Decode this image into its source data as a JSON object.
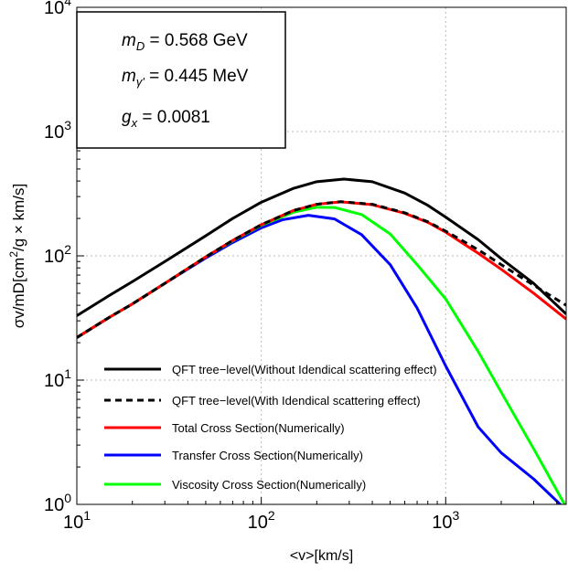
{
  "chart_data": {
    "type": "line",
    "xlabel": "<v>[km/s]",
    "ylabel_parts": {
      "main": "σv/mD[cm",
      "exp": "2",
      "rest": "/g × km/s]"
    },
    "x_scale": "log",
    "y_scale": "log",
    "xlim": [
      10,
      4500
    ],
    "ylim": [
      1,
      10000
    ],
    "grid": true,
    "x_ticks": [
      {
        "value": 10,
        "base": "10",
        "exp": "1"
      },
      {
        "value": 100,
        "base": "10",
        "exp": "2"
      },
      {
        "value": 1000,
        "base": "10",
        "exp": "3"
      }
    ],
    "y_ticks": [
      {
        "value": 1,
        "base": "10",
        "exp": "0"
      },
      {
        "value": 10,
        "base": "10",
        "exp": "1"
      },
      {
        "value": 100,
        "base": "10",
        "exp": "2"
      },
      {
        "value": 1000,
        "base": "10",
        "exp": "3"
      },
      {
        "value": 10000,
        "base": "10",
        "exp": "4"
      }
    ],
    "params_box": [
      {
        "sym": "m",
        "sub": "D",
        "val": " = 0.568 GeV"
      },
      {
        "sym": "m",
        "sub": "γ'",
        "val": " = 0.445 MeV"
      },
      {
        "sym": "g",
        "sub": "x",
        "val": " = 0.0081"
      }
    ],
    "legend_position": "bottom-left",
    "series": [
      {
        "name": "QFT tree−level(Without Idendical scattering effect)",
        "color": "#000000",
        "dash": "solid",
        "x": [
          10,
          15,
          20,
          30,
          50,
          70,
          100,
          150,
          200,
          280,
          400,
          600,
          800,
          1000,
          1500,
          2000,
          3000,
          4500
        ],
        "y": [
          33,
          48,
          62,
          90,
          145,
          200,
          270,
          350,
          395,
          415,
          395,
          320,
          255,
          205,
          135,
          95,
          60,
          34
        ]
      },
      {
        "name": "QFT tree−level(With Idendical scattering effect)",
        "color": "#000000",
        "dash": "dashed",
        "x": [
          10,
          15,
          20,
          30,
          50,
          70,
          100,
          150,
          200,
          270,
          400,
          600,
          800,
          1000,
          1500,
          2000,
          3000,
          4500
        ],
        "y": [
          22,
          32,
          41,
          60,
          98,
          133,
          178,
          232,
          260,
          273,
          260,
          222,
          188,
          158,
          112,
          85,
          58,
          40
        ]
      },
      {
        "name": "Total Cross Section(Numerically)",
        "color": "#ff0000",
        "dash": "solid",
        "x": [
          10,
          15,
          20,
          30,
          50,
          70,
          100,
          150,
          200,
          270,
          400,
          600,
          800,
          1000,
          1500,
          2000,
          3000,
          4500
        ],
        "y": [
          22,
          32,
          41,
          60,
          98,
          133,
          178,
          232,
          260,
          272,
          258,
          220,
          186,
          155,
          105,
          78,
          50,
          31
        ]
      },
      {
        "name": "Transfer Cross Section(Numerically)",
        "color": "#0000ff",
        "dash": "solid",
        "x": [
          10,
          15,
          20,
          30,
          50,
          70,
          100,
          130,
          180,
          250,
          350,
          500,
          700,
          1000,
          1500,
          2000,
          3000,
          4500
        ],
        "y": [
          22,
          32,
          41,
          60,
          96,
          128,
          168,
          195,
          212,
          198,
          148,
          85,
          38,
          13,
          4.2,
          2.6,
          1.6,
          0.9
        ]
      },
      {
        "name": "Viscosity Cross Section(Numerically)",
        "color": "#00ff00",
        "dash": "solid",
        "x": [
          10,
          15,
          20,
          30,
          50,
          70,
          100,
          150,
          200,
          250,
          350,
          500,
          700,
          1000,
          1500,
          2000,
          3000,
          4500
        ],
        "y": [
          22,
          32,
          41,
          60,
          98,
          132,
          176,
          225,
          246,
          245,
          215,
          150,
          85,
          45,
          17,
          8,
          2.8,
          0.95
        ]
      }
    ]
  }
}
